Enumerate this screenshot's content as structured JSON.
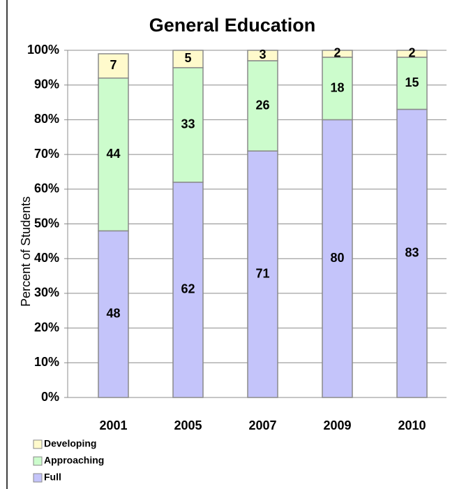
{
  "chart_data": {
    "type": "stacked_bar",
    "title": "General Education",
    "y_label": "Percent of Students",
    "categories": [
      "2001",
      "2005",
      "2007",
      "2009",
      "2010"
    ],
    "series": [
      {
        "name": "Full",
        "color": "#c4c4fa",
        "values": [
          48,
          62,
          71,
          80,
          83
        ]
      },
      {
        "name": "Approaching",
        "color": "#ccfccc",
        "values": [
          44,
          33,
          26,
          18,
          15
        ]
      },
      {
        "name": "Developing",
        "color": "#fffacc",
        "values": [
          7,
          5,
          3,
          2,
          2
        ]
      }
    ],
    "ylim": [
      0,
      100
    ],
    "yticks": [
      {
        "value": 0,
        "label": "0%"
      },
      {
        "value": 10,
        "label": "10%"
      },
      {
        "value": 20,
        "label": "20%"
      },
      {
        "value": 30,
        "label": "30%"
      },
      {
        "value": 40,
        "label": "40%"
      },
      {
        "value": 50,
        "label": "50%"
      },
      {
        "value": 60,
        "label": "60%"
      },
      {
        "value": 70,
        "label": "70%"
      },
      {
        "value": 80,
        "label": "80%"
      },
      {
        "value": 90,
        "label": "90%"
      },
      {
        "value": 100,
        "label": "100%"
      }
    ],
    "grid": true
  }
}
